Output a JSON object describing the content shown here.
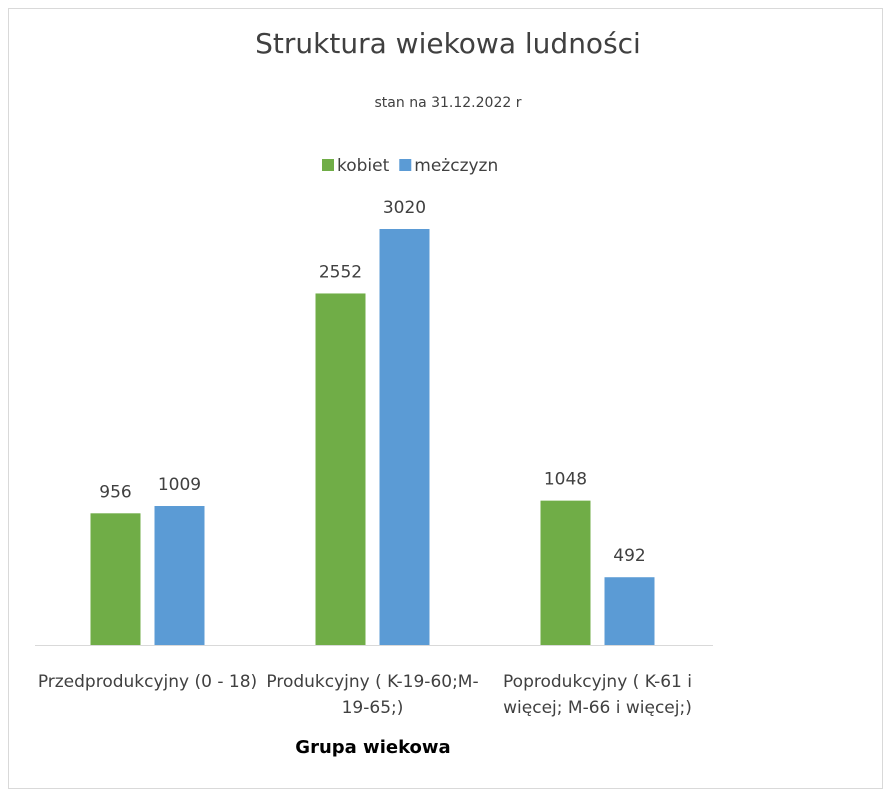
{
  "chart_data": {
    "type": "bar",
    "title": "Struktura wiekowa ludności",
    "subtitle": "stan na 31.12.2022 r",
    "x_label": "Grupa wiekowa",
    "categories": [
      "Przedprodukcyjny (0 - 18)",
      "Produkcyjny ( K-19-60;M-19-65;)",
      "Poprodukcyjny ( K-61 i więcej; M-66 i więcej;)"
    ],
    "series": [
      {
        "name": "kobiet",
        "color": "#70ad47",
        "values": [
          956,
          2552,
          1048
        ]
      },
      {
        "name": "meżczyzn",
        "color": "#5b9bd5",
        "values": [
          1009,
          3020,
          492
        ]
      }
    ],
    "legend": "top"
  }
}
